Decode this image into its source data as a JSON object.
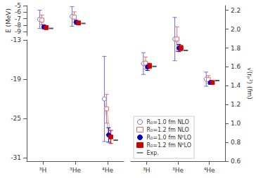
{
  "chart_data": [
    {
      "type": "scatter",
      "ylabel": "E (MeV)",
      "categories": [
        "³H",
        "³He",
        "⁴He"
      ],
      "series": [
        {
          "name": "R₀=1.0 fm NLO",
          "color": "#7070dd",
          "marker": "open_circle",
          "values": [
            -7.1,
            -6.65,
            null
          ],
          "yerr": [
            1.4,
            1.5,
            null
          ]
        },
        {
          "name": "R₀=1.2 fm NLO",
          "color": "#dd7070",
          "marker": "open_square",
          "values": [
            -7.2,
            -6.75,
            null
          ],
          "yerr": [
            0.75,
            0.8,
            null
          ]
        },
        {
          "name": "R₀=1.0 fm N²LO",
          "color": "#0000cc",
          "marker": "circle",
          "values": [
            -8.25,
            -7.55,
            null
          ],
          "yerr": [
            0.3,
            0.3,
            null
          ]
        },
        {
          "name": "R₀=1.2 fm N²LO",
          "color": "#cc0000",
          "marker": "square",
          "values": [
            -8.35,
            -7.65,
            null
          ],
          "yerr": [
            0.3,
            0.3,
            null
          ]
        },
        {
          "name": "Exp.",
          "color": "#555555",
          "marker": "hline",
          "values": [
            -8.48,
            -7.72,
            null
          ]
        }
      ],
      "ylim": [
        -9.6,
        -5.0
      ],
      "yticks": [
        -5,
        -6,
        -7,
        -8,
        -9
      ],
      "tick_labels": "y",
      "grid": false
    },
    {
      "type": "scatter",
      "categories": [
        "³H",
        "³He",
        "⁴He"
      ],
      "series": [
        {
          "name": "R₀=1.0 fm NLO",
          "color": "#7070dd",
          "marker": "open_circle",
          "values": [
            null,
            null,
            -22.0
          ],
          "yerr": [
            null,
            null,
            6.5
          ]
        },
        {
          "name": "R₀=1.2 fm NLO",
          "color": "#dd7070",
          "marker": "open_square",
          "values": [
            null,
            null,
            -23.5
          ],
          "yerr": [
            null,
            null,
            2.2
          ]
        },
        {
          "name": "R₀=1.0 fm N²LO",
          "color": "#0000cc",
          "marker": "circle",
          "values": [
            null,
            null,
            -27.5
          ],
          "yerr": [
            null,
            null,
            1.1
          ]
        },
        {
          "name": "R₀=1.2 fm N²LO",
          "color": "#cc0000",
          "marker": "square",
          "values": [
            null,
            null,
            -27.8
          ],
          "yerr": [
            null,
            null,
            1.0
          ]
        },
        {
          "name": "Exp.",
          "color": "#555555",
          "marker": "hline",
          "values": [
            null,
            null,
            -28.3
          ]
        }
      ],
      "ylim": [
        -31.5,
        -13.0
      ],
      "yticks": [
        -13,
        -19,
        -25,
        -31
      ],
      "grid": false
    },
    {
      "type": "scatter",
      "ylabel": "√⟨rₚ²⟩ (fm)",
      "categories": [
        "³H",
        "³He",
        "⁴He"
      ],
      "series": [
        {
          "name": "R₀=1.0 fm NLO",
          "color": "#7070dd",
          "marker": "open_circle",
          "values": [
            1.635,
            1.895,
            1.47
          ],
          "yerr": [
            0.115,
            0.23,
            0.075
          ]
        },
        {
          "name": "R₀=1.2 fm NLO",
          "color": "#dd7070",
          "marker": "open_square",
          "values": [
            1.64,
            1.895,
            1.465
          ],
          "yerr": [
            0.065,
            0.13,
            0.042
          ]
        },
        {
          "name": "R₀=1.0 fm N²LO",
          "color": "#0000cc",
          "marker": "circle",
          "values": [
            1.6,
            1.8,
            1.435
          ],
          "yerr": [
            0.038,
            0.038,
            0.02
          ]
        },
        {
          "name": "R₀=1.2 fm N²LO",
          "color": "#cc0000",
          "marker": "square",
          "values": [
            1.61,
            1.8,
            1.435
          ],
          "yerr": [
            0.028,
            0.028,
            0.016
          ]
        },
        {
          "name": "Exp.",
          "color": "#555555",
          "marker": "hline",
          "values": [
            1.605,
            1.775,
            1.455
          ]
        }
      ],
      "ylim": [
        0.6,
        2.25
      ],
      "yticks": [
        0.6,
        0.8,
        {
          "value": 1.0,
          "label": "1.0"
        },
        1.2,
        1.4,
        1.6,
        1.8,
        {
          "value": 2.0,
          "label": "2.0"
        },
        2.2
      ],
      "legend": "lower left",
      "grid": false
    }
  ]
}
